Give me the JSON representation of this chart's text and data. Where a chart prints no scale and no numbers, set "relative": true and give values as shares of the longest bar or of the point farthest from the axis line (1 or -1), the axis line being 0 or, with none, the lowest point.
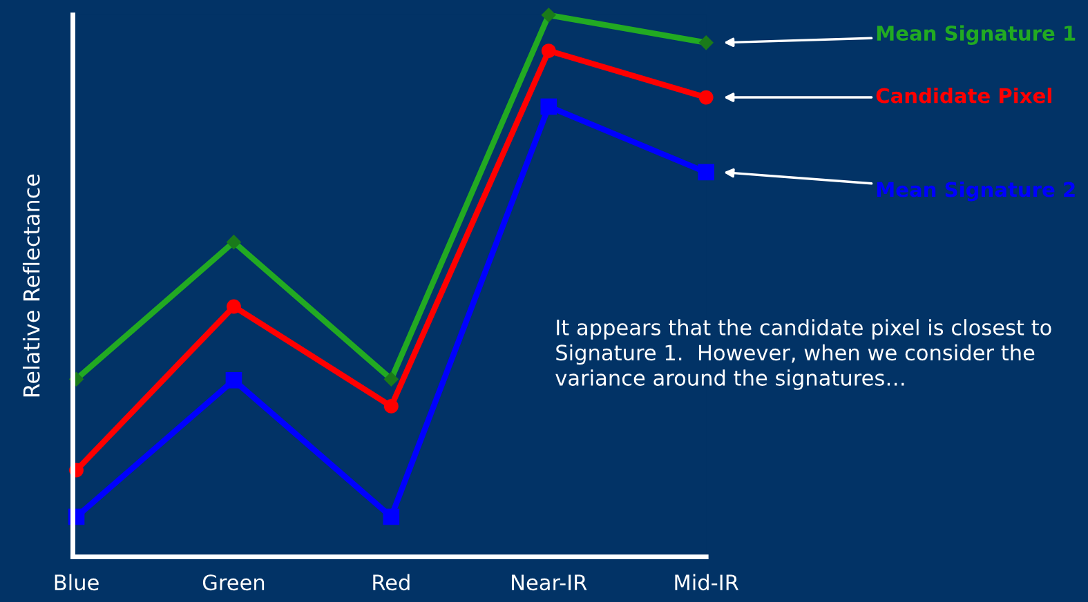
{
  "chart_data": {
    "type": "line",
    "ylabel": "Relative Reflectance",
    "relative": true,
    "legend": false,
    "grid": false,
    "categories": [
      "Blue",
      "Green",
      "Red",
      "Near-IR",
      "Mid-IR"
    ],
    "series": [
      {
        "name": "Mean Signature 1",
        "color": "#22aa22",
        "marker": "diamond",
        "values": [
          0.328,
          0.581,
          0.328,
          1.0,
          0.949
        ]
      },
      {
        "name": "Candidate Pixel",
        "color": "#ff0000",
        "marker": "circle",
        "values": [
          0.16,
          0.462,
          0.278,
          0.934,
          0.848
        ]
      },
      {
        "name": "Mean Signature 2",
        "color": "#0000ff",
        "marker": "square",
        "values": [
          0.074,
          0.326,
          0.074,
          0.831,
          0.71
        ]
      }
    ],
    "annotations": [
      "It appears that the candidate pixel is closest to Signature 1.  However, when we consider the variance around the signatures…"
    ]
  }
}
